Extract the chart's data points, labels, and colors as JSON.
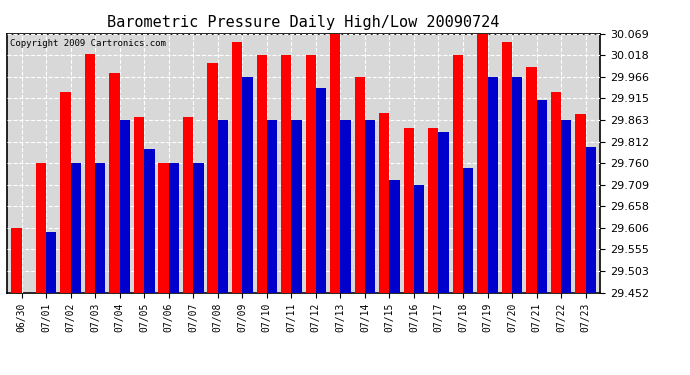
{
  "title": "Barometric Pressure Daily High/Low 20090724",
  "copyright": "Copyright 2009 Cartronics.com",
  "dates": [
    "06/30",
    "07/01",
    "07/02",
    "07/03",
    "07/04",
    "07/05",
    "07/06",
    "07/07",
    "07/08",
    "07/09",
    "07/10",
    "07/11",
    "07/12",
    "07/13",
    "07/14",
    "07/15",
    "07/16",
    "07/17",
    "07/18",
    "07/19",
    "07/20",
    "07/21",
    "07/22",
    "07/23"
  ],
  "highs": [
    29.606,
    29.76,
    29.93,
    30.02,
    29.975,
    29.87,
    29.76,
    29.87,
    30.0,
    30.05,
    30.018,
    30.018,
    30.018,
    30.075,
    29.966,
    29.88,
    29.845,
    29.845,
    30.018,
    30.069,
    30.05,
    29.99,
    29.93,
    29.878
  ],
  "lows": [
    29.452,
    29.596,
    29.76,
    29.76,
    29.863,
    29.795,
    29.76,
    29.76,
    29.863,
    29.966,
    29.863,
    29.863,
    29.94,
    29.863,
    29.863,
    29.72,
    29.709,
    29.835,
    29.75,
    29.966,
    29.966,
    29.91,
    29.863,
    29.8
  ],
  "bar_width": 0.42,
  "high_color": "#ff0000",
  "low_color": "#0000cc",
  "bg_color": "#ffffff",
  "plot_bg_color": "#d8d8d8",
  "grid_color": "#ffffff",
  "ymin": 29.452,
  "ymax": 30.069,
  "yticks": [
    29.452,
    29.503,
    29.555,
    29.606,
    29.658,
    29.709,
    29.76,
    29.812,
    29.863,
    29.915,
    29.966,
    30.018,
    30.069
  ]
}
